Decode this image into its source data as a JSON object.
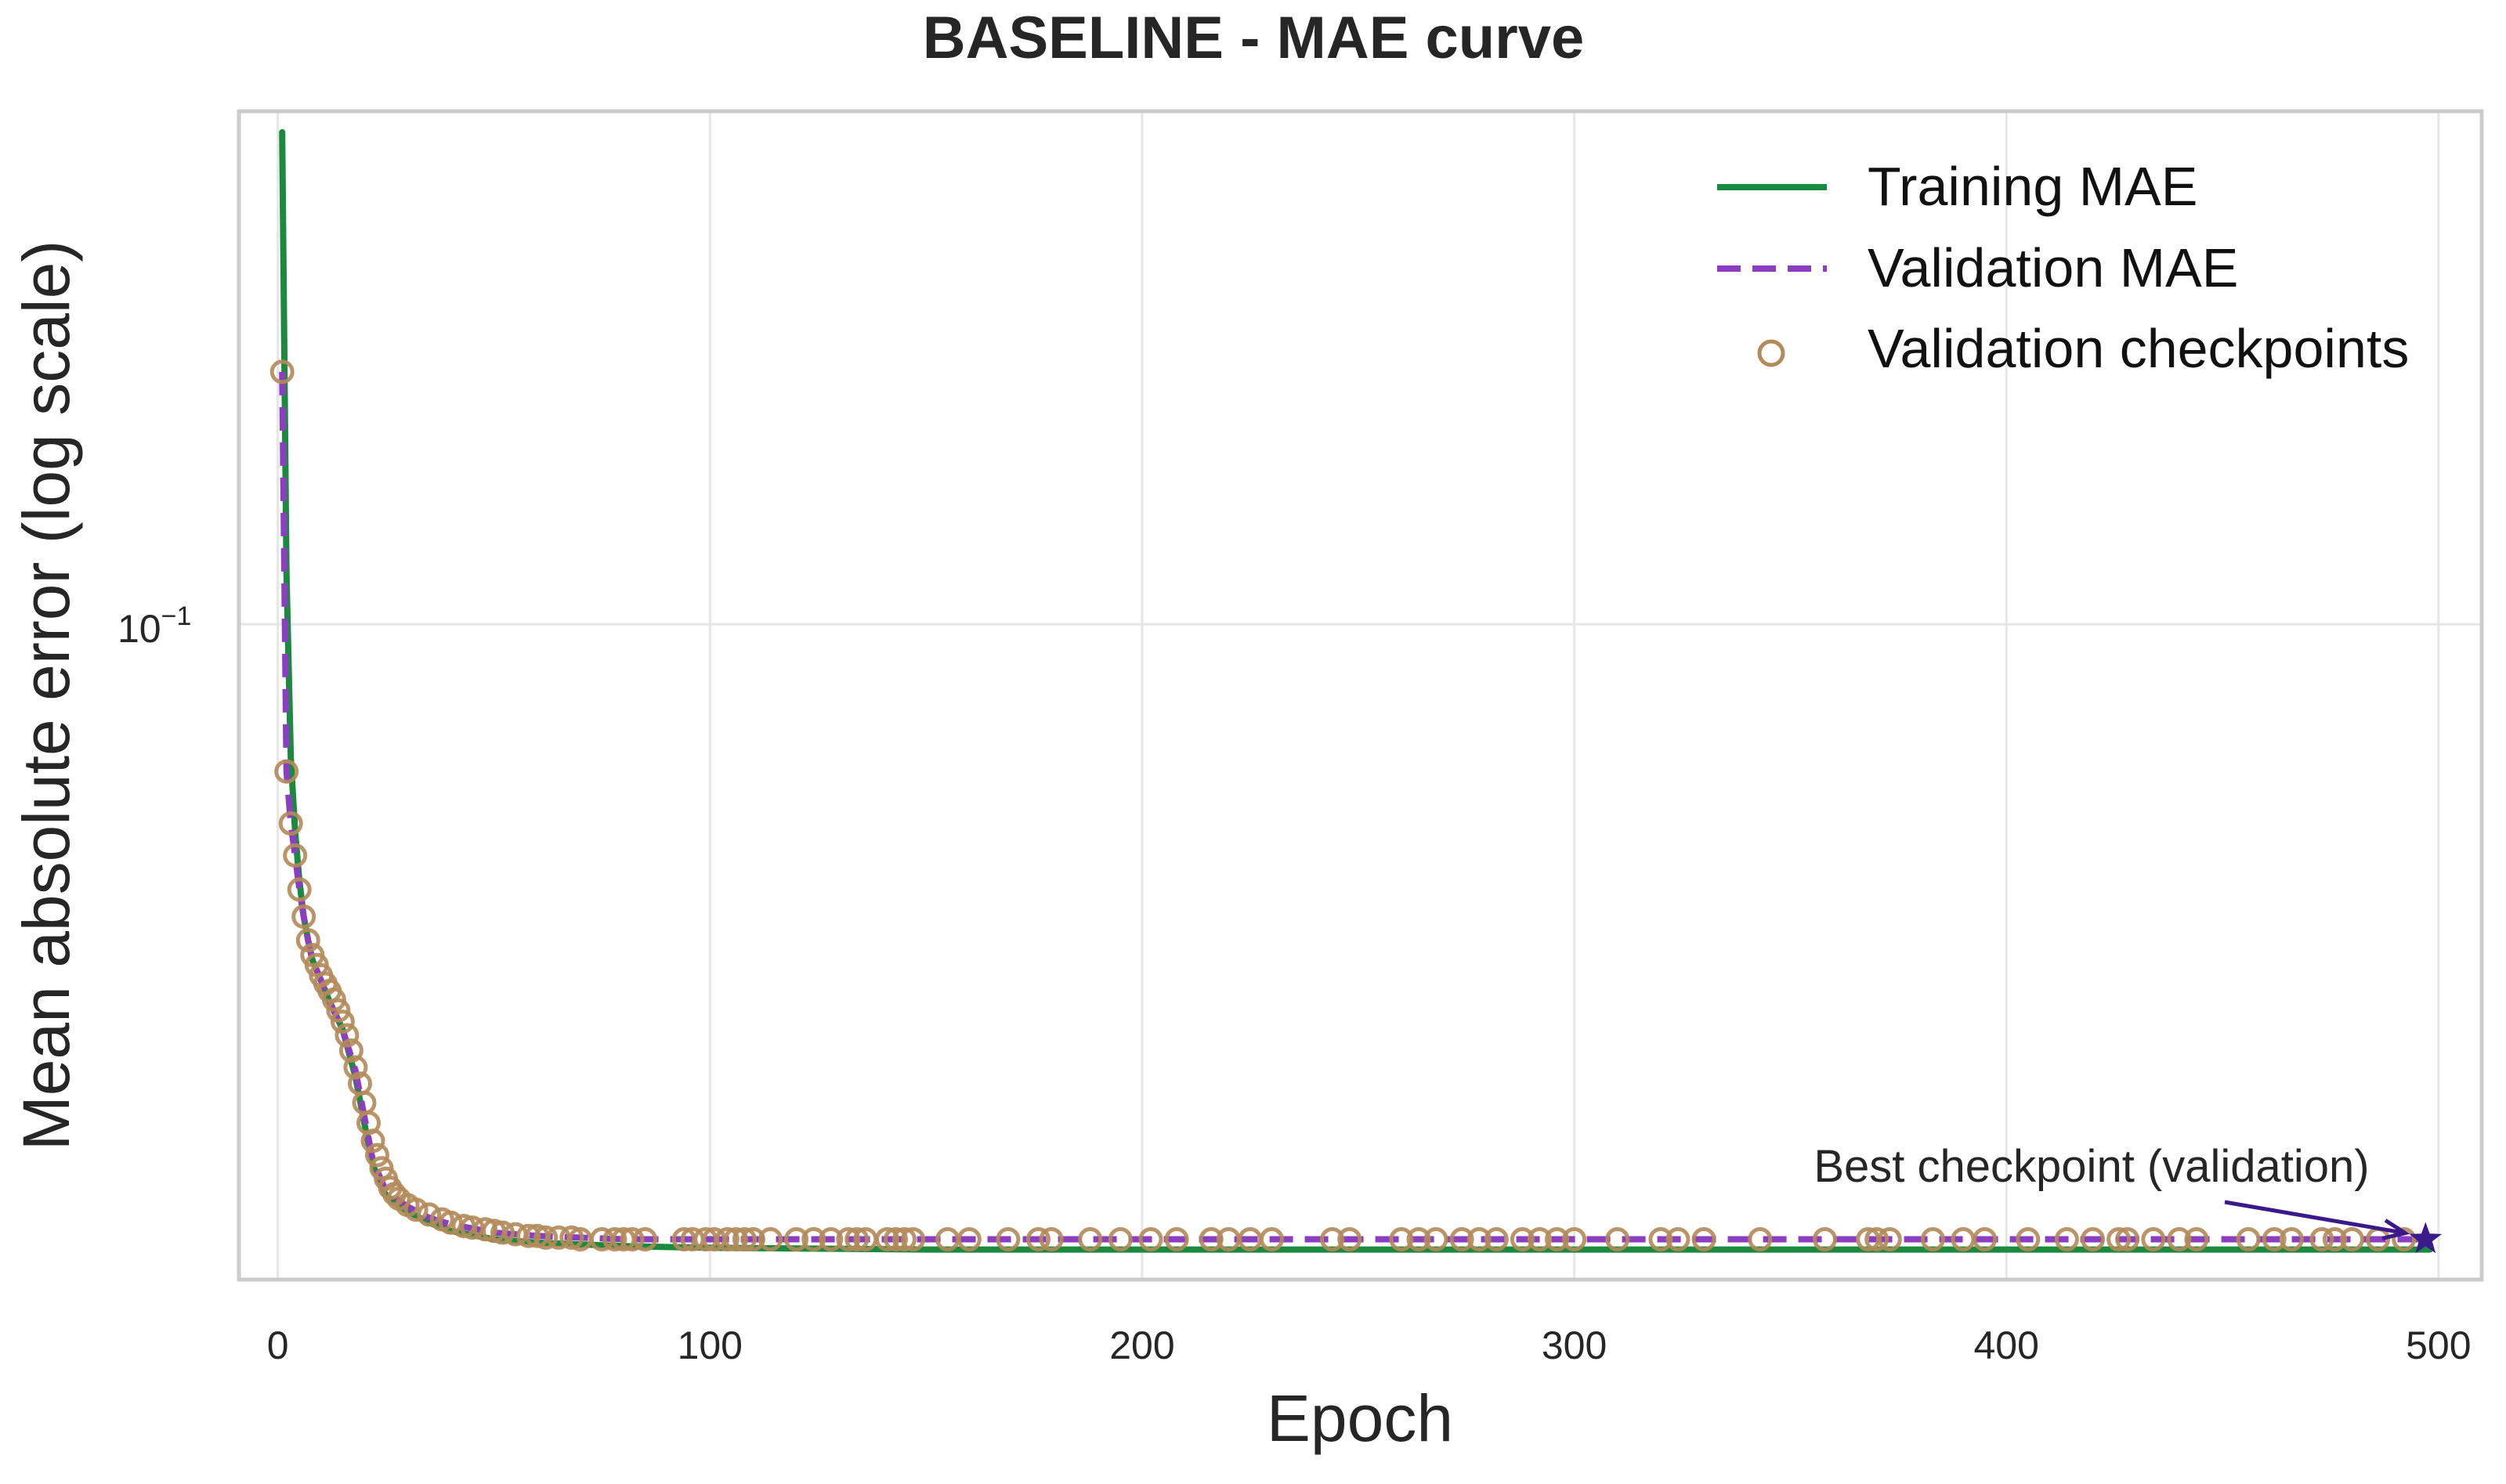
{
  "chart_data": {
    "type": "line",
    "title": "BASELINE - MAE curve",
    "xlabel": "Epoch",
    "ylabel": "Mean absolute error (log scale)",
    "xlim": [
      -9,
      510
    ],
    "ylim": [
      0.0295,
      0.26
    ],
    "yscale": "log",
    "grid": true,
    "legend_position": "top-right",
    "x_ticks": [
      0,
      100,
      200,
      300,
      400,
      500
    ],
    "y_ticks": [
      {
        "value": 0.1,
        "base": "10",
        "exponent": "−1"
      }
    ],
    "colors": {
      "training": "#1b8a3e",
      "validation": "#8b3fc0",
      "checkpoints": "#b48a5a",
      "best": "#3a1a8a",
      "grid": "#e6e6e6",
      "frame": "#cccccc",
      "text": "#262626"
    },
    "series": [
      {
        "name": "Training MAE",
        "style": "solid",
        "x": [
          1,
          2,
          3,
          4,
          5,
          6,
          7,
          8,
          10,
          12,
          15,
          18,
          20,
          22,
          25,
          30,
          35,
          40,
          50,
          60,
          80,
          100,
          150,
          200,
          300,
          400,
          498
        ],
        "y": [
          0.25,
          0.11,
          0.078,
          0.068,
          0.062,
          0.058,
          0.0555,
          0.0535,
          0.0515,
          0.0495,
          0.047,
          0.043,
          0.0395,
          0.0365,
          0.0345,
          0.0335,
          0.0328,
          0.0323,
          0.0318,
          0.0316,
          0.0314,
          0.0313,
          0.0312,
          0.0312,
          0.0312,
          0.0312,
          0.0312
        ]
      },
      {
        "name": "Validation MAE",
        "style": "dashed",
        "x": [
          1,
          2,
          3,
          4,
          5,
          6,
          7,
          8,
          10,
          12,
          15,
          18,
          20,
          22,
          25,
          30,
          35,
          40,
          50,
          60,
          80,
          100,
          150,
          200,
          300,
          400,
          497
        ],
        "y": [
          0.16,
          0.076,
          0.069,
          0.065,
          0.061,
          0.058,
          0.0555,
          0.0535,
          0.0515,
          0.0495,
          0.047,
          0.0435,
          0.04,
          0.0368,
          0.0348,
          0.0338,
          0.0331,
          0.0327,
          0.0322,
          0.032,
          0.0318,
          0.0318,
          0.0318,
          0.0318,
          0.0318,
          0.0318,
          0.0318
        ]
      },
      {
        "name": "Validation checkpoints",
        "style": "markers",
        "x": [
          1,
          2,
          3,
          4,
          5,
          6,
          7,
          8,
          9,
          10,
          11,
          12,
          13,
          14,
          15,
          16,
          17,
          18,
          19,
          20,
          21,
          22,
          23,
          24,
          25,
          26,
          27,
          28,
          30,
          32,
          35,
          38,
          40,
          43,
          45,
          48,
          50,
          52,
          55,
          58,
          60,
          62,
          65,
          68,
          70,
          75,
          78,
          80,
          82,
          85,
          94,
          96,
          99,
          101,
          104,
          106,
          108,
          110,
          114,
          120,
          124,
          128,
          132,
          134,
          136,
          141,
          143,
          145,
          147,
          155,
          160,
          169,
          176,
          179,
          188,
          195,
          202,
          208,
          216,
          220,
          225,
          230,
          244,
          248,
          260,
          264,
          268,
          274,
          278,
          282,
          288,
          292,
          296,
          300,
          310,
          320,
          324,
          330,
          343,
          358,
          368,
          370,
          373,
          383,
          390,
          395,
          405,
          414,
          420,
          426,
          428,
          434,
          440,
          444,
          456,
          462,
          466,
          473,
          476,
          480,
          486,
          492
        ],
        "y": [
          0.16,
          0.076,
          0.069,
          0.065,
          0.061,
          0.058,
          0.0555,
          0.054,
          0.053,
          0.052,
          0.0512,
          0.0505,
          0.0497,
          0.0487,
          0.0477,
          0.0465,
          0.0452,
          0.0438,
          0.0425,
          0.041,
          0.0395,
          0.0382,
          0.0372,
          0.0363,
          0.0356,
          0.035,
          0.0346,
          0.0343,
          0.0339,
          0.0336,
          0.0333,
          0.033,
          0.0328,
          0.0326,
          0.0325,
          0.0324,
          0.0323,
          0.0322,
          0.0321,
          0.032,
          0.032,
          0.0319,
          0.0319,
          0.0319,
          0.0318,
          0.0318,
          0.0318,
          0.0318,
          0.0318,
          0.0318,
          0.0318,
          0.0318,
          0.0318,
          0.0318,
          0.0318,
          0.0318,
          0.0318,
          0.0318,
          0.0318,
          0.0318,
          0.0318,
          0.0318,
          0.0318,
          0.0318,
          0.0318,
          0.0318,
          0.0318,
          0.0318,
          0.0318,
          0.0318,
          0.0318,
          0.0318,
          0.0318,
          0.0318,
          0.0318,
          0.0318,
          0.0318,
          0.0318,
          0.0318,
          0.0318,
          0.0318,
          0.0318,
          0.0318,
          0.0318,
          0.0318,
          0.0318,
          0.0318,
          0.0318,
          0.0318,
          0.0318,
          0.0318,
          0.0318,
          0.0318,
          0.0318,
          0.0318,
          0.0318,
          0.0318,
          0.0318,
          0.0318,
          0.0318,
          0.0318,
          0.0318,
          0.0318,
          0.0318,
          0.0318,
          0.0318,
          0.0318,
          0.0318,
          0.0318,
          0.0318,
          0.0318,
          0.0318,
          0.0318,
          0.0318,
          0.0318,
          0.0318,
          0.0318,
          0.0318,
          0.0318,
          0.0318,
          0.0318,
          0.0318
        ]
      }
    ],
    "best_checkpoint": {
      "label": "Best checkpoint (validation)",
      "x": 497,
      "y": 0.0318
    }
  }
}
